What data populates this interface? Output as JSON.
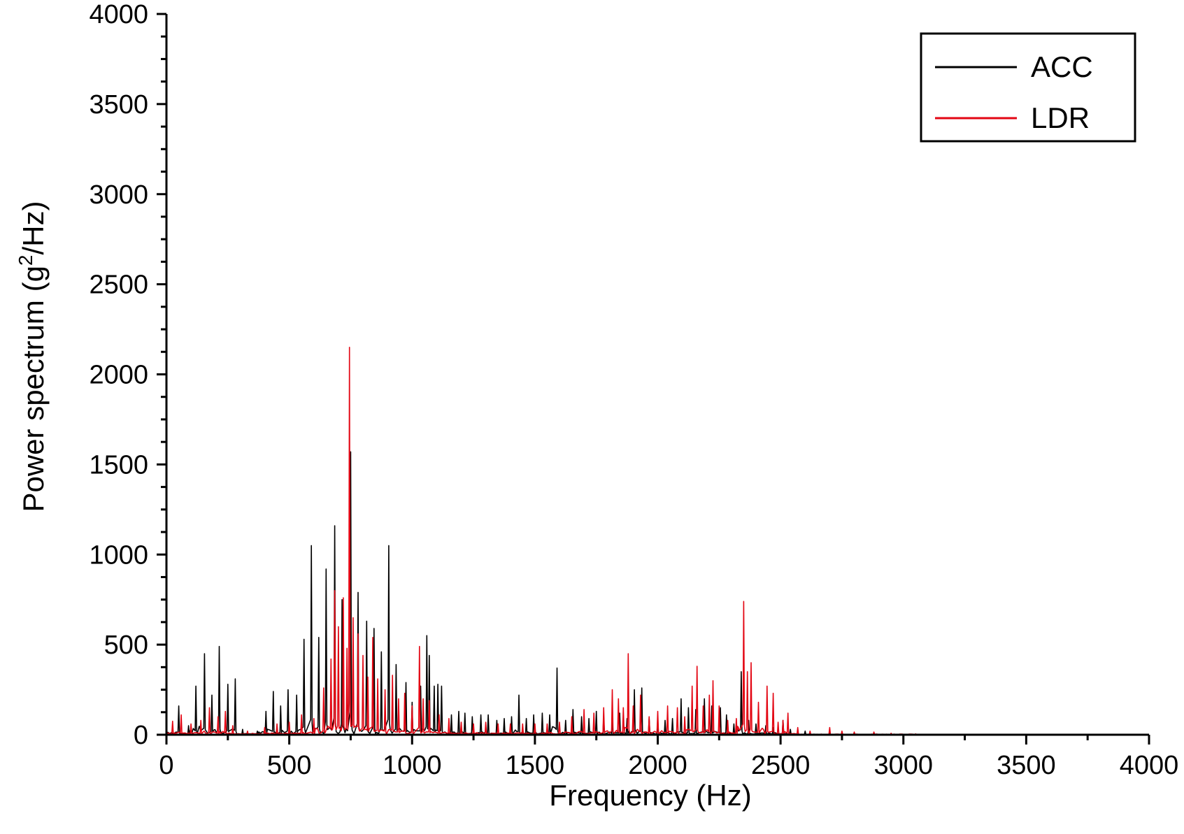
{
  "chart_data": {
    "type": "line",
    "title": "",
    "xlabel": "Frequency (Hz)",
    "ylabel": {
      "prefix": "Power spectrum (g",
      "sup": "2",
      "suffix": "/Hz)"
    },
    "xlim": [
      0,
      4000
    ],
    "ylim": [
      0,
      4000
    ],
    "xticks": [
      "0",
      "500",
      "1000",
      "1500",
      "2000",
      "2500",
      "3000",
      "3500",
      "4000"
    ],
    "yticks": [
      "0",
      "500",
      "1000",
      "1500",
      "2000",
      "2500",
      "3000",
      "3500",
      "4000"
    ],
    "grid": false,
    "legend_position": "top-right",
    "series": [
      {
        "name": "ACC",
        "color": "#000000",
        "peaks": [
          [
            50,
            160
          ],
          [
            90,
            50
          ],
          [
            120,
            270
          ],
          [
            155,
            450
          ],
          [
            185,
            220
          ],
          [
            215,
            490
          ],
          [
            250,
            280
          ],
          [
            280,
            310
          ],
          [
            310,
            30
          ],
          [
            370,
            20
          ],
          [
            405,
            130
          ],
          [
            435,
            240
          ],
          [
            465,
            160
          ],
          [
            495,
            250
          ],
          [
            530,
            220
          ],
          [
            560,
            530
          ],
          [
            590,
            1050
          ],
          [
            620,
            540
          ],
          [
            650,
            920
          ],
          [
            685,
            1160
          ],
          [
            715,
            750
          ],
          [
            750,
            1570
          ],
          [
            780,
            790
          ],
          [
            815,
            630
          ],
          [
            845,
            590
          ],
          [
            875,
            460
          ],
          [
            905,
            1050
          ],
          [
            935,
            390
          ],
          [
            975,
            290
          ],
          [
            1000,
            180
          ],
          [
            1035,
            270
          ],
          [
            1060,
            550
          ],
          [
            1070,
            440
          ],
          [
            1090,
            270
          ],
          [
            1105,
            280
          ],
          [
            1120,
            270
          ],
          [
            1160,
            110
          ],
          [
            1190,
            130
          ],
          [
            1215,
            120
          ],
          [
            1245,
            100
          ],
          [
            1280,
            110
          ],
          [
            1310,
            110
          ],
          [
            1345,
            80
          ],
          [
            1375,
            90
          ],
          [
            1405,
            100
          ],
          [
            1435,
            220
          ],
          [
            1465,
            90
          ],
          [
            1495,
            110
          ],
          [
            1530,
            120
          ],
          [
            1560,
            110
          ],
          [
            1590,
            370
          ],
          [
            1625,
            80
          ],
          [
            1655,
            140
          ],
          [
            1690,
            100
          ],
          [
            1720,
            90
          ],
          [
            1750,
            130
          ],
          [
            1780,
            100
          ],
          [
            1815,
            110
          ],
          [
            1845,
            120
          ],
          [
            1875,
            90
          ],
          [
            1905,
            250
          ],
          [
            1935,
            260
          ],
          [
            1965,
            90
          ],
          [
            2000,
            80
          ],
          [
            2030,
            80
          ],
          [
            2060,
            90
          ],
          [
            2095,
            200
          ],
          [
            2125,
            150
          ],
          [
            2155,
            140
          ],
          [
            2190,
            200
          ],
          [
            2220,
            160
          ],
          [
            2255,
            150
          ],
          [
            2280,
            110
          ],
          [
            2310,
            60
          ],
          [
            2340,
            350
          ],
          [
            2370,
            80
          ],
          [
            2400,
            60
          ],
          [
            2440,
            50
          ],
          [
            2470,
            40
          ],
          [
            2510,
            80
          ],
          [
            2540,
            30
          ],
          [
            2600,
            20
          ],
          [
            2700,
            10
          ]
        ]
      },
      {
        "name": "LDR",
        "color": "#e30613",
        "peaks": [
          [
            25,
            75
          ],
          [
            60,
            110
          ],
          [
            100,
            60
          ],
          [
            140,
            80
          ],
          [
            175,
            150
          ],
          [
            210,
            100
          ],
          [
            240,
            130
          ],
          [
            270,
            50
          ],
          [
            330,
            20
          ],
          [
            400,
            40
          ],
          [
            450,
            60
          ],
          [
            500,
            70
          ],
          [
            550,
            110
          ],
          [
            600,
            90
          ],
          [
            640,
            260
          ],
          [
            670,
            420
          ],
          [
            685,
            800
          ],
          [
            700,
            600
          ],
          [
            720,
            760
          ],
          [
            735,
            480
          ],
          [
            745,
            2150
          ],
          [
            760,
            650
          ],
          [
            780,
            560
          ],
          [
            800,
            440
          ],
          [
            820,
            320
          ],
          [
            840,
            540
          ],
          [
            860,
            310
          ],
          [
            890,
            250
          ],
          [
            920,
            330
          ],
          [
            945,
            200
          ],
          [
            970,
            230
          ],
          [
            1000,
            160
          ],
          [
            1030,
            490
          ],
          [
            1045,
            200
          ],
          [
            1070,
            190
          ],
          [
            1110,
            110
          ],
          [
            1150,
            90
          ],
          [
            1200,
            70
          ],
          [
            1250,
            60
          ],
          [
            1300,
            70
          ],
          [
            1350,
            60
          ],
          [
            1400,
            60
          ],
          [
            1450,
            60
          ],
          [
            1500,
            60
          ],
          [
            1550,
            60
          ],
          [
            1600,
            70
          ],
          [
            1650,
            100
          ],
          [
            1700,
            140
          ],
          [
            1740,
            120
          ],
          [
            1780,
            150
          ],
          [
            1815,
            250
          ],
          [
            1840,
            200
          ],
          [
            1860,
            150
          ],
          [
            1880,
            450
          ],
          [
            1900,
            160
          ],
          [
            1930,
            220
          ],
          [
            1965,
            100
          ],
          [
            2000,
            130
          ],
          [
            2040,
            160
          ],
          [
            2080,
            150
          ],
          [
            2110,
            100
          ],
          [
            2140,
            270
          ],
          [
            2160,
            380
          ],
          [
            2185,
            160
          ],
          [
            2210,
            220
          ],
          [
            2225,
            300
          ],
          [
            2250,
            160
          ],
          [
            2285,
            80
          ],
          [
            2320,
            90
          ],
          [
            2350,
            740
          ],
          [
            2365,
            350
          ],
          [
            2380,
            400
          ],
          [
            2410,
            180
          ],
          [
            2445,
            270
          ],
          [
            2470,
            230
          ],
          [
            2490,
            70
          ],
          [
            2510,
            80
          ],
          [
            2530,
            120
          ],
          [
            2570,
            40
          ],
          [
            2620,
            20
          ],
          [
            2700,
            40
          ],
          [
            2750,
            20
          ],
          [
            2800,
            15
          ],
          [
            2880,
            15
          ],
          [
            2950,
            8
          ],
          [
            3050,
            5
          ]
        ]
      }
    ]
  }
}
